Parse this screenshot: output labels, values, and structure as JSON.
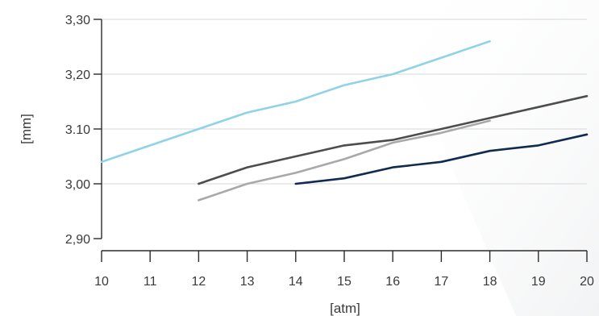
{
  "chart_data": {
    "type": "line",
    "xlabel": "[atm]",
    "ylabel": "[mm]",
    "xlim": [
      10,
      20
    ],
    "ylim": [
      2.9,
      3.3
    ],
    "x_ticks": [
      10,
      11,
      12,
      13,
      14,
      15,
      16,
      17,
      18,
      19,
      20
    ],
    "x_tick_labels": [
      "10",
      "11",
      "12",
      "13",
      "14",
      "15",
      "16",
      "17",
      "18",
      "19",
      "20"
    ],
    "y_ticks": [
      2.9,
      3.0,
      3.1,
      3.2,
      3.3
    ],
    "y_tick_labels": [
      "2,90",
      "3,00",
      "3.10",
      "3,20",
      "3,30"
    ],
    "grid": "horizontal",
    "series": [
      {
        "color": "#8fd3e6",
        "x": [
          10,
          11,
          12,
          13,
          14,
          15,
          16,
          17,
          18
        ],
        "y": [
          3.04,
          3.07,
          3.1,
          3.13,
          3.15,
          3.18,
          3.2,
          3.23,
          3.26
        ]
      },
      {
        "color": "#4d4d4d",
        "x": [
          12,
          13,
          14,
          15,
          16,
          17,
          18,
          19,
          20
        ],
        "y": [
          3.0,
          3.03,
          3.05,
          3.07,
          3.08,
          3.1,
          3.12,
          3.14,
          3.16
        ]
      },
      {
        "color": "#a9a9a9",
        "x": [
          12,
          13,
          14,
          15,
          16,
          17,
          18
        ],
        "y": [
          2.97,
          3.0,
          3.02,
          3.045,
          3.075,
          3.093,
          3.115
        ]
      },
      {
        "color": "#0f2b4f",
        "x": [
          14,
          15,
          16,
          17,
          18,
          19,
          20
        ],
        "y": [
          3.0,
          3.01,
          3.03,
          3.04,
          3.06,
          3.07,
          3.09
        ]
      }
    ]
  }
}
